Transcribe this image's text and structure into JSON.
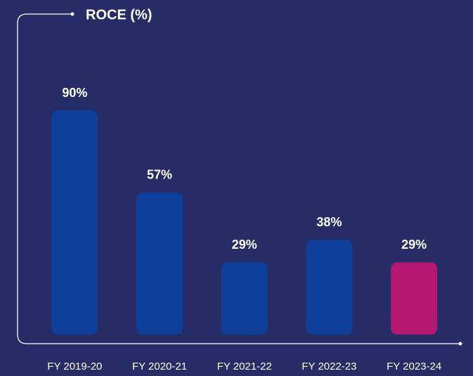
{
  "chart_data": {
    "type": "bar",
    "title": "ROCE (%)",
    "categories": [
      "FY 2019-20",
      "FY 2020-21",
      "FY 2021-22",
      "FY 2022-23",
      "FY 2023-24"
    ],
    "values": [
      90,
      57,
      29,
      38,
      29
    ],
    "value_labels": [
      "90%",
      "57%",
      "29%",
      "38%",
      "29%"
    ],
    "colors": [
      "#0e3f9a",
      "#0e3f9a",
      "#0e3f9a",
      "#0e3f9a",
      "#b3176f"
    ]
  }
}
